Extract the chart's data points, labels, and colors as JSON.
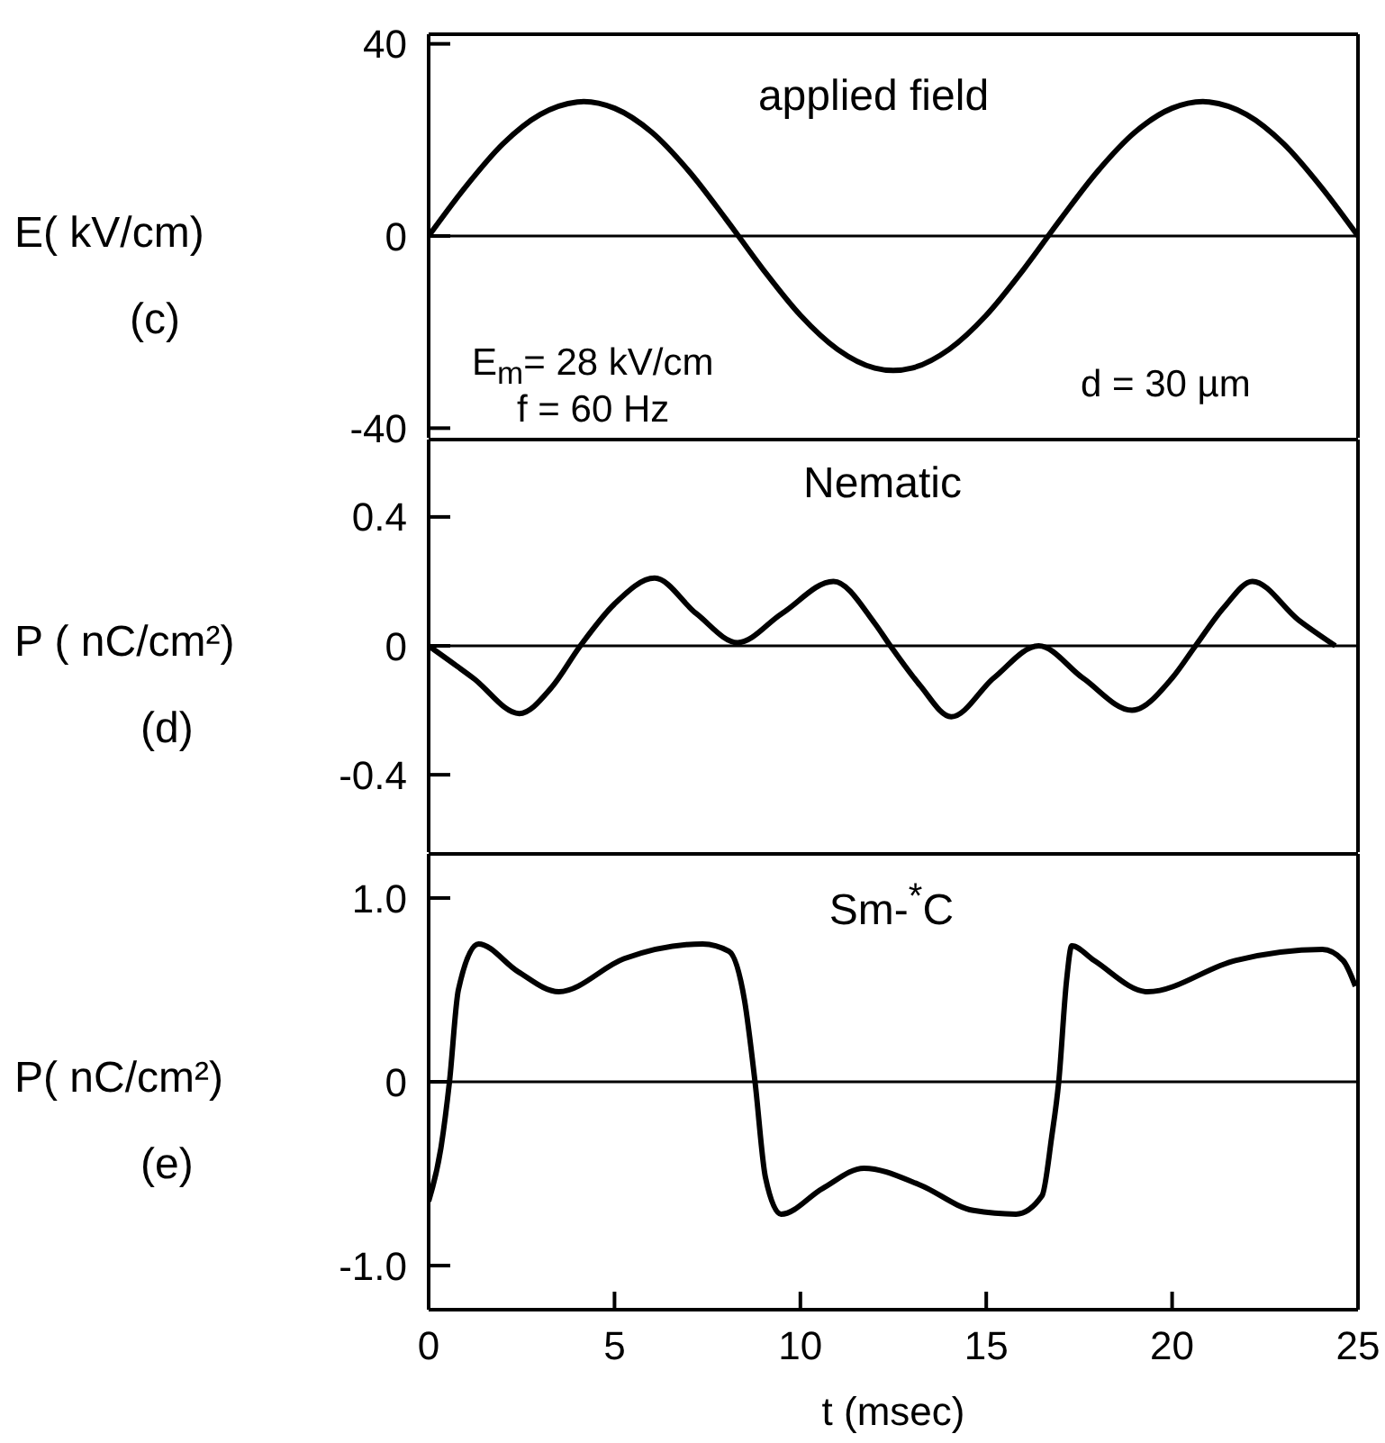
{
  "chart_data": [
    {
      "type": "line",
      "title": "applied field",
      "ylabel": "E( kV/cm)",
      "annotations": [
        "(c)",
        "E$_{m}$= 28 kV/cm",
        "f = 60 Hz",
        "d = 30 µm"
      ],
      "xlim": [
        0,
        25
      ],
      "xticks": [
        0,
        5,
        10,
        15,
        20,
        25
      ],
      "ylim": [
        -42,
        42
      ],
      "yticks": [
        -40,
        0,
        40
      ],
      "tick_labels": "y",
      "line_style": "solid",
      "ref_lines": [
        {
          "axis": "y",
          "value": 0,
          "color": "#000000"
        }
      ],
      "series": [
        {
          "color": "#000000",
          "x": [
            0,
            1,
            2,
            3,
            4,
            4.17,
            5,
            6,
            7,
            8,
            9,
            10,
            11,
            12,
            12.5,
            13,
            14,
            15,
            16,
            17,
            18,
            19,
            20,
            20.83,
            21,
            22,
            23,
            24,
            25
          ],
          "values": [
            0,
            10.3,
            19.2,
            25.3,
            27.9,
            28,
            26.6,
            21.6,
            13.5,
            3.5,
            -7,
            -16.5,
            -23.6,
            -27.5,
            -28,
            -27.5,
            -23.6,
            -16.5,
            -7,
            3.5,
            13.5,
            21.6,
            26.6,
            28,
            27.9,
            25.3,
            19.2,
            10.3,
            0
          ]
        }
      ]
    },
    {
      "type": "line",
      "title": "Nematic",
      "ylabel": "P ( nC/cm²)",
      "annotations": [
        "(d)"
      ],
      "xlim": [
        0,
        25
      ],
      "xticks": [
        0,
        5,
        10,
        15,
        20,
        25
      ],
      "ylim": [
        -0.64,
        0.64
      ],
      "yticks": [
        -0.4,
        0,
        0.4
      ],
      "tick_labels": "y",
      "line_style": "solid",
      "ref_lines": [
        {
          "axis": "y",
          "value": 0,
          "color": "#000000"
        }
      ],
      "series": [
        {
          "color": "#000000",
          "x": [
            0,
            1.2,
            2.44,
            3.3,
            4.08,
            5,
            6.08,
            7.2,
            8.31,
            9.5,
            10.89,
            12,
            12.42,
            13.2,
            14.06,
            15.2,
            16.41,
            17.6,
            18.92,
            20,
            20.63,
            21.4,
            22.16,
            23.4,
            24.39
          ],
          "values": [
            0,
            -0.1,
            -0.21,
            -0.13,
            0,
            0.13,
            0.21,
            0.1,
            0.01,
            0.1,
            0.2,
            0.07,
            0,
            -0.12,
            -0.22,
            -0.1,
            0,
            -0.1,
            -0.2,
            -0.1,
            0,
            0.12,
            0.2,
            0.08,
            0
          ]
        }
      ]
    },
    {
      "type": "line",
      "title": "Sm-$^{*}$C",
      "ylabel": "P( nC/cm²)",
      "xlabel": "t  (msec)",
      "annotations": [
        "(e)"
      ],
      "xlim": [
        0,
        25
      ],
      "xticks": [
        0,
        5,
        10,
        15,
        20,
        25
      ],
      "ylim": [
        -1.24,
        1.24
      ],
      "yticks": [
        {
          "value": -1,
          "label": "-1.0"
        },
        0,
        {
          "value": 1,
          "label": "1.0"
        }
      ],
      "line_style": "solid",
      "ref_lines": [
        {
          "axis": "y",
          "value": 0,
          "color": "#000000"
        }
      ],
      "series": [
        {
          "color": "#000000",
          "x": [
            0,
            0.33,
            0.56,
            0.8,
            1.34,
            2.4,
            3.5,
            5.26,
            7.37,
            8.08,
            8.5,
            8.78,
            9.06,
            9.48,
            10.6,
            11.71,
            13.2,
            14.65,
            15.8,
            16.5,
            16.76,
            16.95,
            17.16,
            17.3,
            17.9,
            19.34,
            21.7,
            24.04,
            24.6,
            24.93
          ],
          "values": [
            -0.65,
            -0.36,
            0,
            0.5,
            0.75,
            0.6,
            0.49,
            0.67,
            0.75,
            0.71,
            0.44,
            0,
            -0.52,
            -0.72,
            -0.58,
            -0.47,
            -0.56,
            -0.7,
            -0.72,
            -0.62,
            -0.3,
            0,
            0.55,
            0.74,
            0.66,
            0.49,
            0.66,
            0.72,
            0.66,
            0.52
          ]
        }
      ]
    }
  ]
}
